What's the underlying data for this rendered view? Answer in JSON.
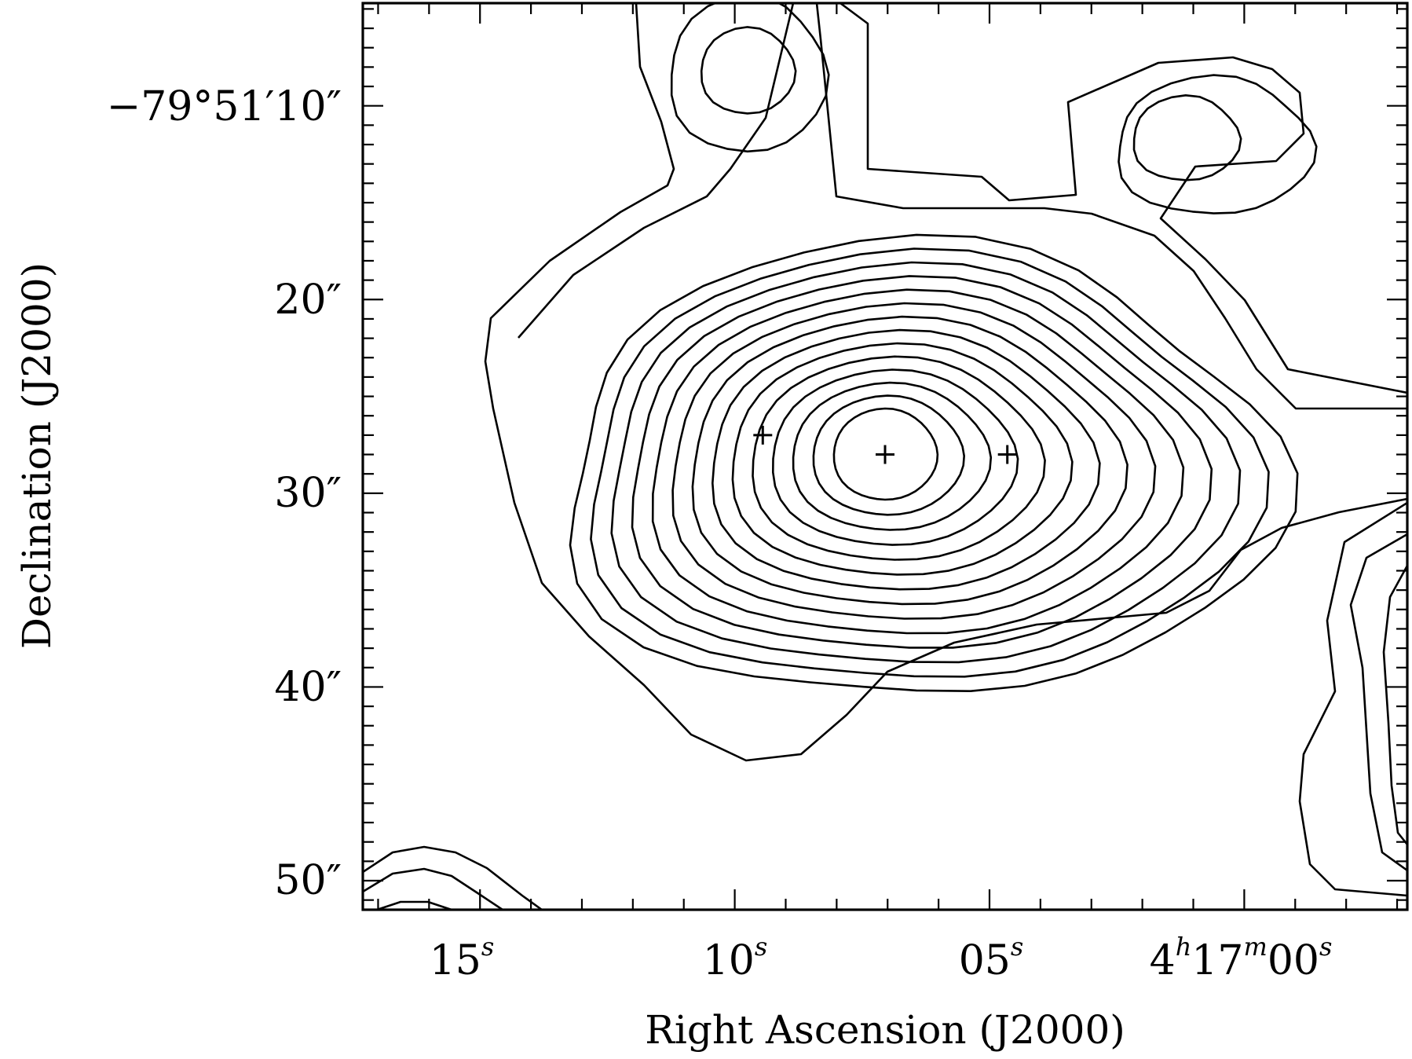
{
  "chart_data": {
    "type": "contour",
    "xlabel": "Right Ascension (J2000)",
    "ylabel": "Declination (J2000)",
    "x_tick_labels": [
      {
        "seconds": 15,
        "text": "15",
        "sup": "s"
      },
      {
        "seconds": 10,
        "text": "10",
        "sup": "s"
      },
      {
        "seconds": 5,
        "text": "05",
        "sup": "s"
      },
      {
        "seconds": 0,
        "parts": [
          [
            "4",
            "h"
          ],
          [
            "17",
            "m"
          ],
          [
            "00",
            "s"
          ]
        ]
      }
    ],
    "y_tick_labels": [
      {
        "arcsec": 10,
        "text": "−79°51′10″"
      },
      {
        "arcsec": 20,
        "text": "20″"
      },
      {
        "arcsec": 30,
        "text": "30″"
      },
      {
        "arcsec": 40,
        "text": "40″"
      },
      {
        "arcsec": 50,
        "text": "50″"
      }
    ],
    "xlim_seconds": [
      17.3,
      -3.2
    ],
    "ylim_arcsec": [
      4.7,
      51.5
    ],
    "markers": [
      {
        "ra_s": 9.45,
        "dec_arcsec": 27.0
      },
      {
        "ra_s": 7.05,
        "dec_arcsec": 28.0
      },
      {
        "ra_s": 4.65,
        "dec_arcsec": 28.0
      }
    ],
    "peak": {
      "ra_s": 7.05,
      "dec_arcsec": 28.0
    },
    "main_contour_count": 14,
    "grid": false,
    "legend": "none"
  }
}
